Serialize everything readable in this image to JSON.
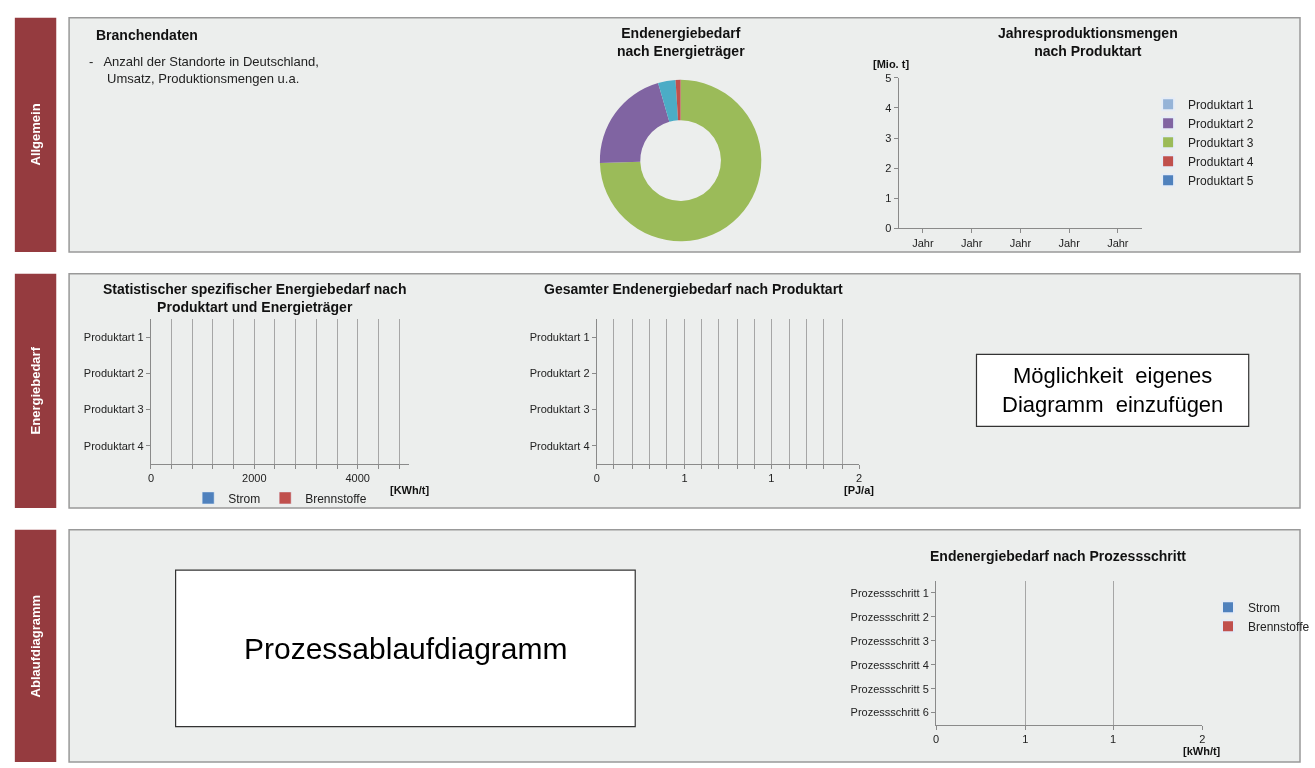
{
  "chart_data": [
    {
      "type": "other",
      "annotations": [
        "Allgemein",
        "Energiebedarf",
        "Ablaufdiagramm"
      ]
    },
    {
      "type": "other",
      "title": "Branchendaten",
      "annotations": [
        "-   Anzahl der Standorte in Deutschland,\n     Umsatz, Produktionsmengen u.a."
      ]
    },
    {
      "type": "donut",
      "title": "Endenergiebedarf\nnach Energieträger",
      "categories": [
        null,
        null,
        null,
        null
      ],
      "values": [
        74.5,
        21,
        3.5,
        1
      ],
      "colors": [
        "#9bbb59",
        "#8064a2",
        "#4bacc6",
        "#c0504d"
      ]
    },
    {
      "type": "bar",
      "title": "Jahresproduktionsmengen\nnach Produktart",
      "ylabel": "[Mio. t]",
      "categories": [
        "Jahr",
        "Jahr",
        "Jahr",
        "Jahr",
        "Jahr"
      ],
      "ylim": [
        0,
        5
      ],
      "yticks": [
        0,
        1,
        2,
        3,
        4,
        5
      ],
      "grid": false,
      "legend": "right",
      "series": [
        {
          "name": "Produktart 1",
          "color": "#95b3d7",
          "values": [
            null,
            null,
            null,
            null,
            null
          ]
        },
        {
          "name": "Produktart 2",
          "color": "#8064a2",
          "values": [
            null,
            null,
            null,
            null,
            null
          ]
        },
        {
          "name": "Produktart 3",
          "color": "#9bbb59",
          "values": [
            null,
            null,
            null,
            null,
            null
          ]
        },
        {
          "name": "Produktart 4",
          "color": "#c0504d",
          "values": [
            null,
            null,
            null,
            null,
            null
          ]
        },
        {
          "name": "Produktart 5",
          "color": "#4f81bd",
          "values": [
            null,
            null,
            null,
            null,
            null
          ]
        }
      ]
    },
    {
      "type": "bar",
      "orientation": "horizontal",
      "title": "Statistischer spezifischer Energiebedarf nach\nProduktart und Energieträger",
      "xlabel": "[KWh/t]",
      "categories": [
        "Produktart 1",
        "Produktart 2",
        "Produktart 3",
        "Produktart 4"
      ],
      "xlim": [
        0,
        5000
      ],
      "xticks": [
        0,
        {
          "value": 400,
          "label": null
        },
        {
          "value": 800,
          "label": null
        },
        {
          "value": 1200,
          "label": null
        },
        {
          "value": 1600,
          "label": null
        },
        2000,
        {
          "value": 2400,
          "label": null
        },
        {
          "value": 2800,
          "label": null
        },
        {
          "value": 3200,
          "label": null
        },
        {
          "value": 3600,
          "label": null
        },
        4000,
        {
          "value": 4400,
          "label": null
        },
        {
          "value": 4800,
          "label": null
        }
      ],
      "grid": "x",
      "legend": "bottom",
      "series": [
        {
          "name": "Strom",
          "color": "#4f81bd",
          "values": [
            null,
            null,
            null,
            null
          ]
        },
        {
          "name": "Brennstoffe",
          "color": "#c0504d",
          "values": [
            null,
            null,
            null,
            null
          ]
        }
      ]
    },
    {
      "type": "bar",
      "orientation": "horizontal",
      "title": "Gesamter Endenergiebedarf nach Produktart",
      "xlabel": "[PJ/a]",
      "categories": [
        "Produktart 1",
        "Produktart 2",
        "Produktart 3",
        "Produktart 4"
      ],
      "xlim": [
        0,
        2
      ],
      "xticks": [
        0,
        {
          "value": 0.13,
          "label": null
        },
        {
          "value": 0.27,
          "label": null
        },
        {
          "value": 0.4,
          "label": null
        },
        {
          "value": 0.53,
          "label": null
        },
        {
          "value": 0.67,
          "label": "1"
        },
        {
          "value": 0.8,
          "label": null
        },
        {
          "value": 0.93,
          "label": null
        },
        {
          "value": 1.07,
          "label": null
        },
        {
          "value": 1.2,
          "label": null
        },
        {
          "value": 1.33,
          "label": "1"
        },
        {
          "value": 1.47,
          "label": null
        },
        {
          "value": 1.6,
          "label": null
        },
        {
          "value": 1.73,
          "label": null
        },
        {
          "value": 1.87,
          "label": null
        },
        2
      ],
      "grid": "x",
      "values": [
        null,
        null,
        null,
        null
      ]
    },
    {
      "type": "other",
      "annotations": [
        "Möglichkeit  eigenes\nDiagramm  einzufügen"
      ]
    },
    {
      "type": "other",
      "annotations": [
        "Prozessablaufdiagramm"
      ]
    },
    {
      "type": "bar",
      "orientation": "horizontal",
      "title": "Endenergiebedarf nach Prozessschritt",
      "xlabel": "[kWh/t]",
      "categories": [
        "Prozessschritt 1",
        "Prozessschritt 2",
        "Prozessschritt 3",
        "Prozessschritt 4",
        "Prozessschritt 5",
        "Prozessschritt 6"
      ],
      "xlim": [
        0,
        2
      ],
      "xticks": [
        0,
        {
          "value": 0.67,
          "label": "1"
        },
        {
          "value": 1.33,
          "label": "1"
        },
        2
      ],
      "grid": "x",
      "legend": "right",
      "series": [
        {
          "name": "Strom",
          "color": "#4f81bd",
          "values": [
            null,
            null,
            null,
            null,
            null,
            null
          ]
        },
        {
          "name": "Brennstoffe",
          "color": "#c0504d",
          "values": [
            null,
            null,
            null,
            null,
            null,
            null
          ]
        }
      ]
    }
  ]
}
